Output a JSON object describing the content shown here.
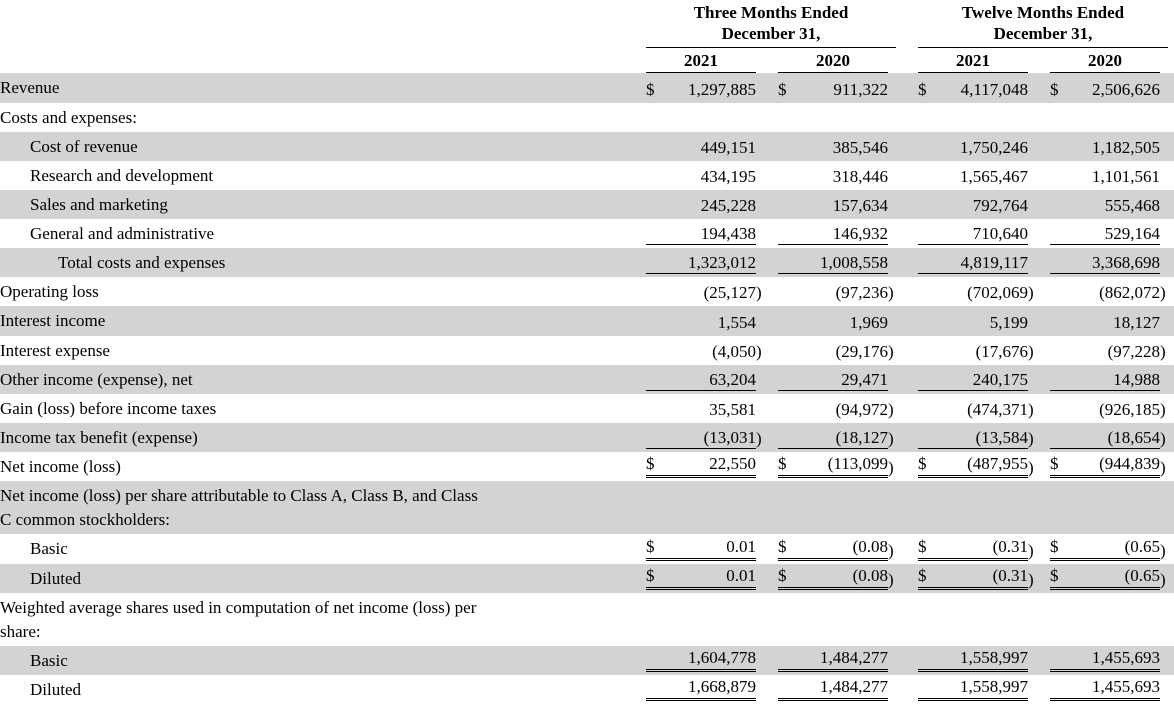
{
  "table": {
    "currency_symbol": "$",
    "shade_color": "#d3d3d3",
    "groups": [
      {
        "line1": "Three Months Ended",
        "line2": "December 31,",
        "years": [
          "2021",
          "2020"
        ]
      },
      {
        "line1": "Twelve Months Ended",
        "line2": "December 31,",
        "years": [
          "2021",
          "2020"
        ]
      }
    ],
    "rows": [
      {
        "label": "Revenue",
        "indent": 0,
        "shaded": true,
        "dollar": true,
        "values": [
          "1,297,885",
          "911,322",
          "4,117,048",
          "2,506,626"
        ]
      },
      {
        "label": "Costs and expenses:",
        "indent": 0,
        "shaded": false,
        "values": []
      },
      {
        "label": "Cost of revenue",
        "indent": 1,
        "shaded": true,
        "values": [
          "449,151",
          "385,546",
          "1,750,246",
          "1,182,505"
        ]
      },
      {
        "label": "Research and development",
        "indent": 1,
        "shaded": false,
        "values": [
          "434,195",
          "318,446",
          "1,565,467",
          "1,101,561"
        ]
      },
      {
        "label": "Sales and marketing",
        "indent": 1,
        "shaded": true,
        "values": [
          "245,228",
          "157,634",
          "792,764",
          "555,468"
        ]
      },
      {
        "label": "General and administrative",
        "indent": 1,
        "shaded": false,
        "border": "single",
        "values": [
          "194,438",
          "146,932",
          "710,640",
          "529,164"
        ]
      },
      {
        "label": "Total costs and expenses",
        "indent": 2,
        "shaded": true,
        "border": "single",
        "values": [
          "1,323,012",
          "1,008,558",
          "4,819,117",
          "3,368,698"
        ]
      },
      {
        "label": "Operating loss",
        "indent": 0,
        "shaded": false,
        "values": [
          "(25,127)",
          "(97,236)",
          "(702,069)",
          "(862,072)"
        ]
      },
      {
        "label": "Interest income",
        "indent": 0,
        "shaded": true,
        "values": [
          "1,554",
          "1,969",
          "5,199",
          "18,127"
        ]
      },
      {
        "label": "Interest expense",
        "indent": 0,
        "shaded": false,
        "values": [
          "(4,050)",
          "(29,176)",
          "(17,676)",
          "(97,228)"
        ]
      },
      {
        "label": "Other income (expense), net",
        "indent": 0,
        "shaded": true,
        "border": "single",
        "values": [
          "63,204",
          "29,471",
          "240,175",
          "14,988"
        ]
      },
      {
        "label": "Gain (loss) before income taxes",
        "indent": 0,
        "shaded": false,
        "values": [
          "35,581",
          "(94,972)",
          "(474,371)",
          "(926,185)"
        ]
      },
      {
        "label": "Income tax benefit (expense)",
        "indent": 0,
        "shaded": true,
        "border": "single",
        "values": [
          "(13,031)",
          "(18,127)",
          "(13,584)",
          "(18,654)"
        ]
      },
      {
        "label": "Net income (loss)",
        "indent": 0,
        "shaded": false,
        "dollar": true,
        "border": "double",
        "values": [
          "22,550",
          "(113,099)",
          "(487,955)",
          "(944,839)"
        ]
      },
      {
        "label": "Net income (loss) per share attributable to Class A, Class B, and Class",
        "label2": "C common stockholders:",
        "indent": 0,
        "shaded": true,
        "values": []
      },
      {
        "label": "Basic",
        "indent": 1,
        "shaded": false,
        "dollar": true,
        "border": "double",
        "values": [
          "0.01",
          "(0.08)",
          "(0.31)",
          "(0.65)"
        ]
      },
      {
        "label": "Diluted",
        "indent": 1,
        "shaded": true,
        "dollar": true,
        "border": "double",
        "values": [
          "0.01",
          "(0.08)",
          "(0.31)",
          "(0.65)"
        ]
      },
      {
        "label": "Weighted average shares used in computation of net income (loss) per",
        "label2": "share:",
        "indent": 0,
        "shaded": false,
        "values": []
      },
      {
        "label": "Basic",
        "indent": 1,
        "shaded": true,
        "border": "double",
        "values": [
          "1,604,778",
          "1,484,277",
          "1,558,997",
          "1,455,693"
        ]
      },
      {
        "label": "Diluted",
        "indent": 1,
        "shaded": false,
        "border": "double",
        "values": [
          "1,668,879",
          "1,484,277",
          "1,558,997",
          "1,455,693"
        ]
      }
    ]
  }
}
